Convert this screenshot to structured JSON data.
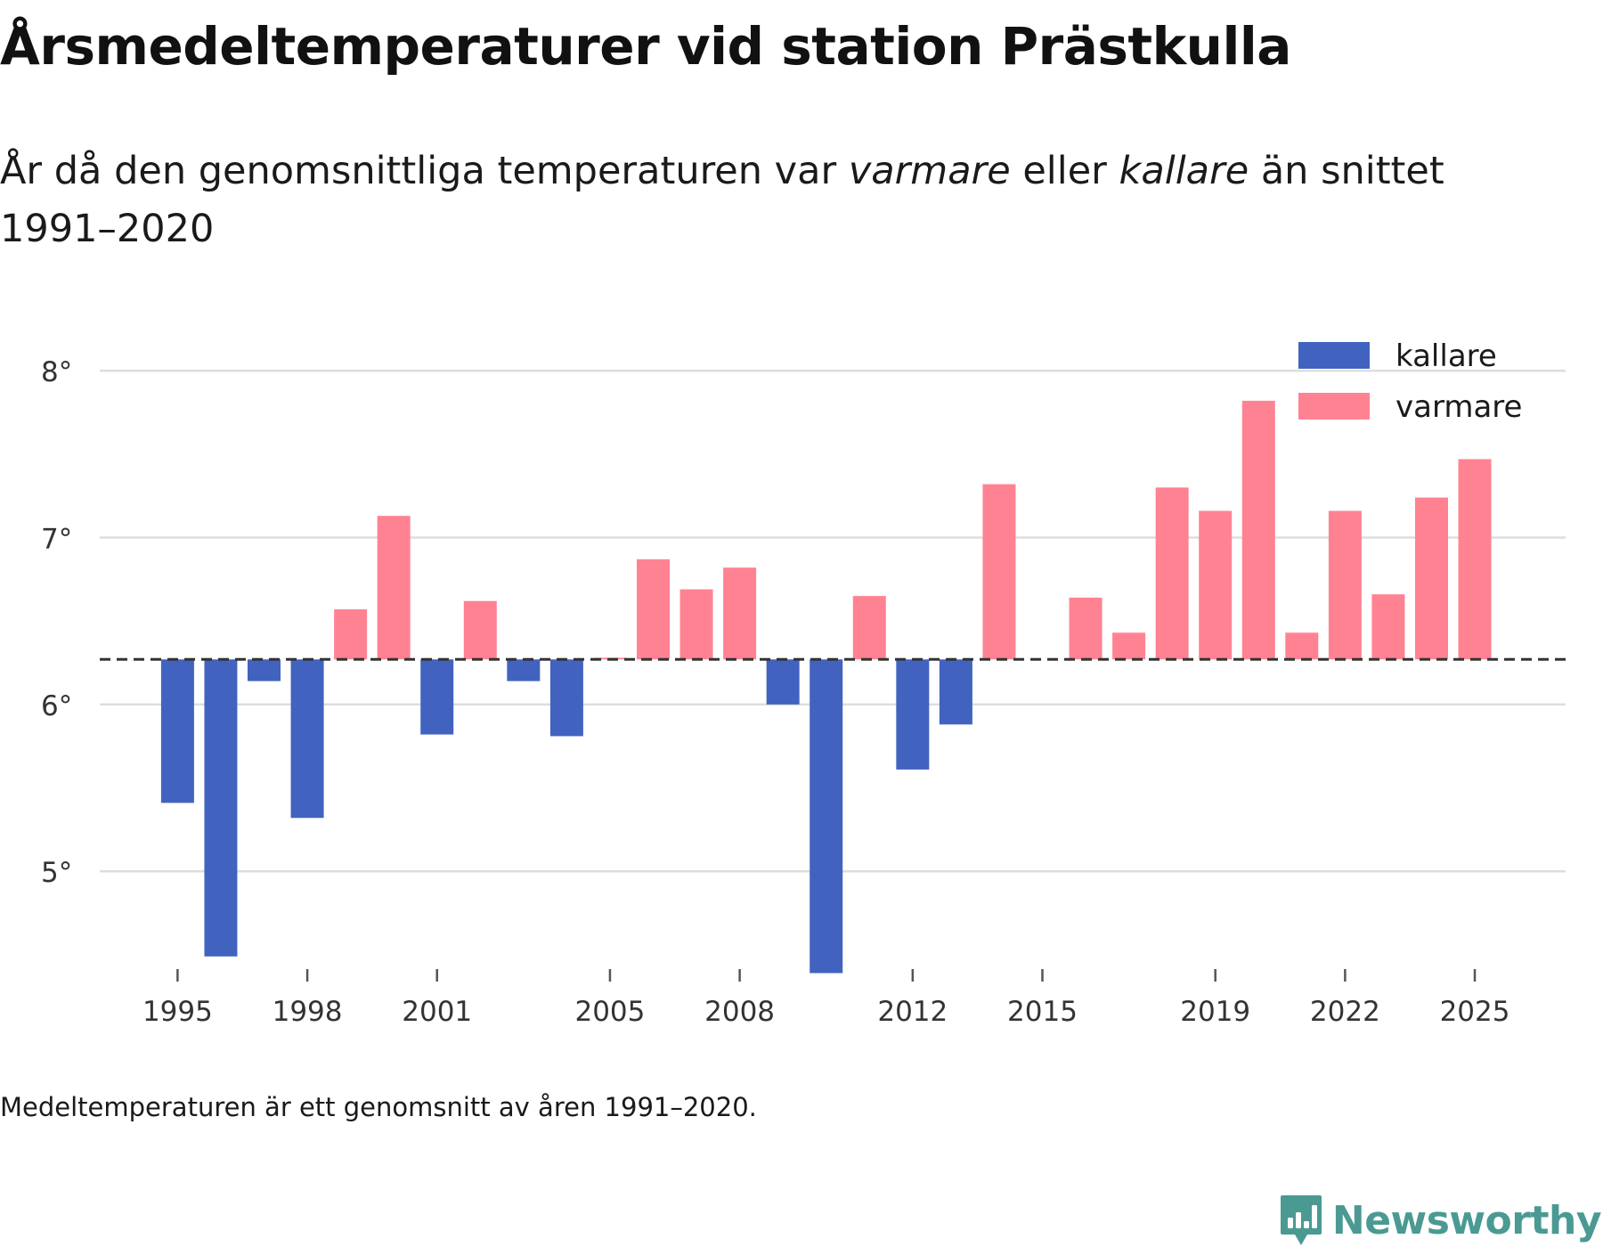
{
  "title": "Årsmedeltemperaturer vid station Prästkulla",
  "subtitle": {
    "part1": "År då den genomsnittliga temperaturen var ",
    "warm_word": "varmare",
    "part2": " eller ",
    "cold_word": "kallare",
    "part3": " än snittet 1991–2020"
  },
  "footnote": "Medeltemperaturen är ett genomsnitt av åren 1991–2020.",
  "brand": {
    "name": "Newsworthy",
    "icon": "newsworthy-logo-icon"
  },
  "colors": {
    "cold": "#4163bf",
    "warm": "#ff8293",
    "grid": "#dddddd",
    "baseline": "#333333",
    "brand": "#4a9a93"
  },
  "chart_data": {
    "type": "bar",
    "baseline": 6.27,
    "ylim": [
      4.35,
      8.3
    ],
    "yticks": [
      5,
      6,
      7,
      8
    ],
    "ytick_labels": [
      "5°",
      "6°",
      "7°",
      "8°"
    ],
    "xlim": [
      1993.2,
      2027.1
    ],
    "xticks": [
      1995,
      1998,
      2001,
      2005,
      2008,
      2012,
      2015,
      2019,
      2022,
      2025
    ],
    "xtick_labels": [
      "1995",
      "1998",
      "2001",
      "2005",
      "2008",
      "2012",
      "2015",
      "2019",
      "2022",
      "2025"
    ],
    "legend": {
      "position": "top-right",
      "entries": [
        {
          "key": "cold",
          "label": "kallare"
        },
        {
          "key": "warm",
          "label": "varmare"
        }
      ]
    },
    "series": [
      {
        "name": "Årsmedeltemperatur",
        "x": [
          1995,
          1996,
          1997,
          1998,
          1999,
          2000,
          2001,
          2002,
          2003,
          2004,
          2005,
          2006,
          2007,
          2008,
          2009,
          2010,
          2011,
          2012,
          2013,
          2014,
          2016,
          2017,
          2018,
          2019,
          2020,
          2021,
          2022,
          2023,
          2024,
          2025
        ],
        "values": [
          5.41,
          4.49,
          6.14,
          5.32,
          6.57,
          7.13,
          5.82,
          6.62,
          6.14,
          5.81,
          6.28,
          6.87,
          6.69,
          6.82,
          6.0,
          4.39,
          6.65,
          5.61,
          5.88,
          7.32,
          6.64,
          6.43,
          7.3,
          7.16,
          7.82,
          6.43,
          7.16,
          6.66,
          7.24,
          7.47
        ]
      }
    ]
  }
}
